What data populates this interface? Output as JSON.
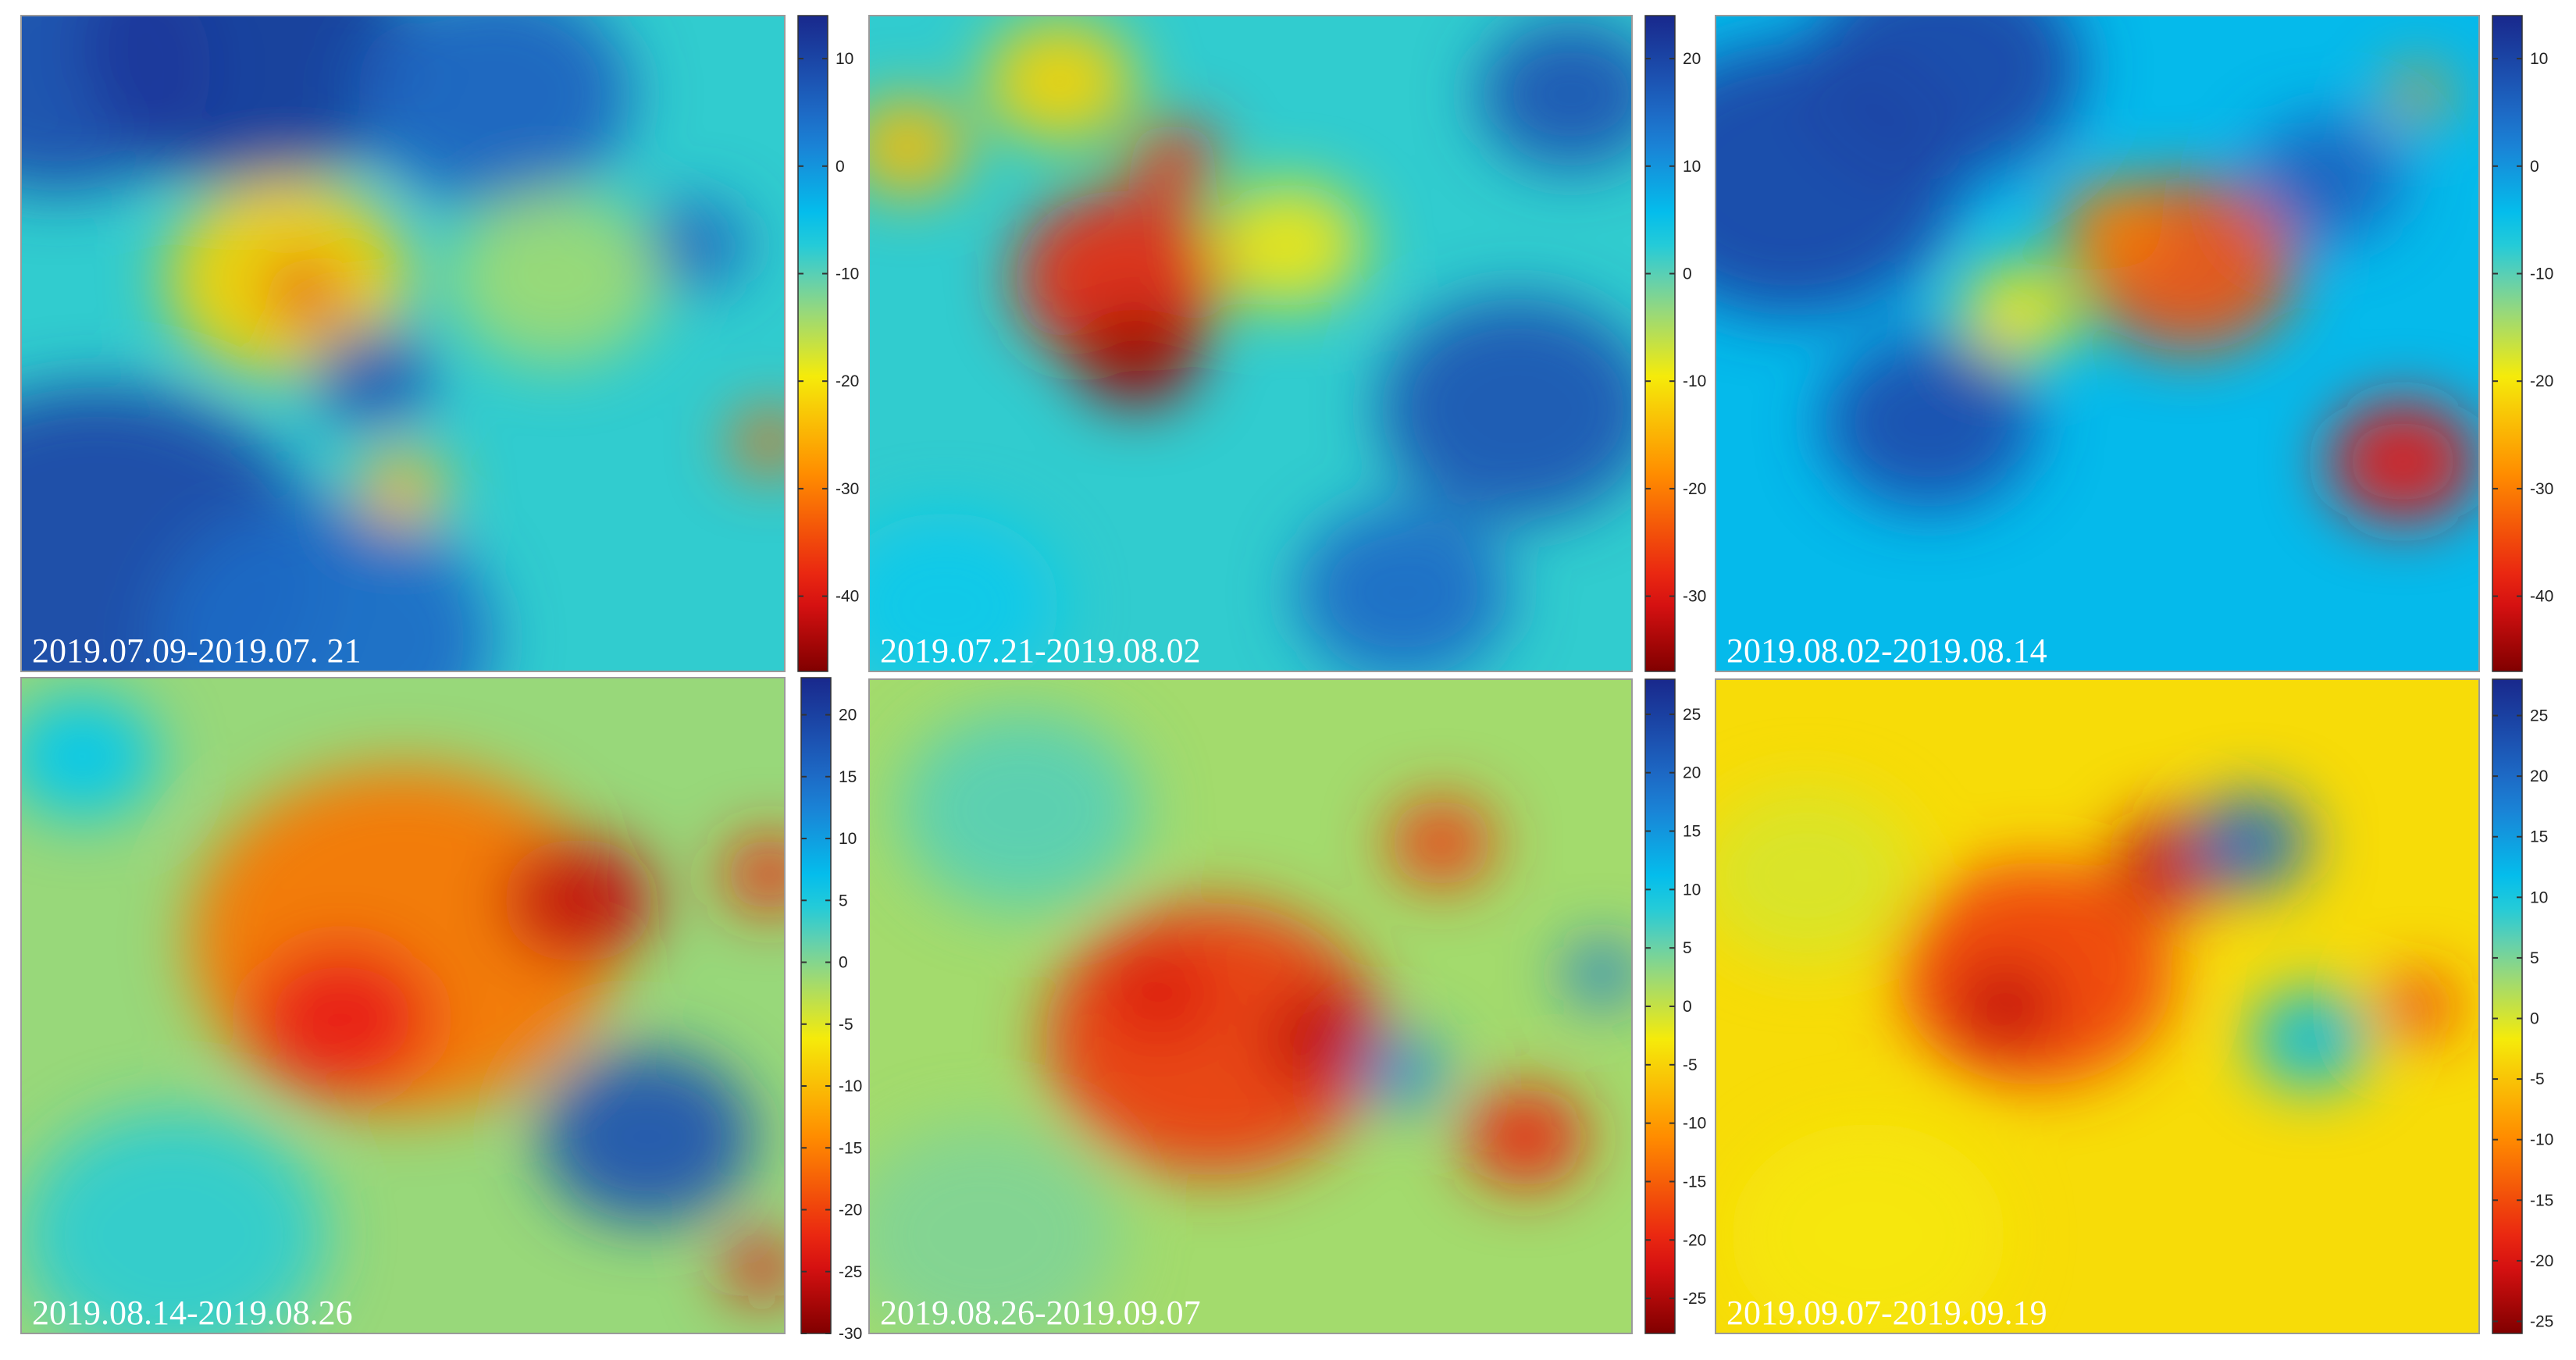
{
  "chart_data": [
    {
      "type": "heatmap",
      "title": "2019.07.09-2019.07. 21",
      "colorbar": {
        "range": [
          -47,
          14
        ],
        "ticks": [
          10,
          0,
          -10,
          -20,
          -30,
          -40
        ]
      },
      "colormap": "jet",
      "background_value": -8,
      "features": [
        {
          "x": 0.05,
          "y": 0.08,
          "r": 0.2,
          "v": 9
        },
        {
          "x": 0.3,
          "y": 0.05,
          "r": 0.22,
          "v": 12
        },
        {
          "x": 0.62,
          "y": 0.12,
          "r": 0.18,
          "v": 6
        },
        {
          "x": 0.1,
          "y": 0.85,
          "r": 0.3,
          "v": 10
        },
        {
          "x": 0.4,
          "y": 0.95,
          "r": 0.22,
          "v": 5
        },
        {
          "x": 0.35,
          "y": 0.4,
          "r": 0.16,
          "v": -22
        },
        {
          "x": 0.37,
          "y": 0.42,
          "r": 0.05,
          "v": -38
        },
        {
          "x": 0.46,
          "y": 0.55,
          "r": 0.08,
          "v": 8
        },
        {
          "x": 0.88,
          "y": 0.35,
          "r": 0.07,
          "v": 6
        },
        {
          "x": 0.98,
          "y": 0.65,
          "r": 0.05,
          "v": -32
        },
        {
          "x": 0.7,
          "y": 0.4,
          "r": 0.14,
          "v": -14
        },
        {
          "x": 0.5,
          "y": 0.72,
          "r": 0.06,
          "v": -24
        }
      ]
    },
    {
      "type": "heatmap",
      "title": "2019.07.21-2019.08.02",
      "colorbar": {
        "range": [
          -37,
          24
        ],
        "ticks": [
          20,
          10,
          0,
          -10,
          -20,
          -30
        ]
      },
      "colormap": "jet",
      "background_value": 2,
      "features": [
        {
          "x": 0.33,
          "y": 0.4,
          "r": 0.14,
          "v": -28
        },
        {
          "x": 0.35,
          "y": 0.52,
          "r": 0.08,
          "v": -35
        },
        {
          "x": 0.4,
          "y": 0.22,
          "r": 0.06,
          "v": -26
        },
        {
          "x": 0.25,
          "y": 0.1,
          "r": 0.1,
          "v": -12
        },
        {
          "x": 0.85,
          "y": 0.6,
          "r": 0.18,
          "v": 18
        },
        {
          "x": 0.92,
          "y": 0.12,
          "r": 0.12,
          "v": 18
        },
        {
          "x": 0.7,
          "y": 0.88,
          "r": 0.14,
          "v": 15
        },
        {
          "x": 0.55,
          "y": 0.35,
          "r": 0.1,
          "v": -10
        },
        {
          "x": 0.1,
          "y": 0.9,
          "r": 0.15,
          "v": 4
        },
        {
          "x": 0.05,
          "y": 0.2,
          "r": 0.08,
          "v": -14
        }
      ]
    },
    {
      "type": "heatmap",
      "title": "2019.08.02-2019.08.14",
      "colorbar": {
        "range": [
          -47,
          14
        ],
        "ticks": [
          10,
          0,
          -10,
          -20,
          -30,
          -40
        ]
      },
      "colormap": "jet",
      "background_value": -4,
      "features": [
        {
          "x": 0.1,
          "y": 0.25,
          "r": 0.22,
          "v": 10
        },
        {
          "x": 0.3,
          "y": 0.08,
          "r": 0.18,
          "v": 10
        },
        {
          "x": 0.62,
          "y": 0.38,
          "r": 0.14,
          "v": -34
        },
        {
          "x": 0.52,
          "y": 0.32,
          "r": 0.07,
          "v": -30
        },
        {
          "x": 0.9,
          "y": 0.68,
          "r": 0.1,
          "v": -40
        },
        {
          "x": 0.92,
          "y": 0.12,
          "r": 0.04,
          "v": -28
        },
        {
          "x": 0.28,
          "y": 0.62,
          "r": 0.14,
          "v": 9
        },
        {
          "x": 0.4,
          "y": 0.45,
          "r": 0.08,
          "v": -20
        },
        {
          "x": 0.8,
          "y": 0.25,
          "r": 0.1,
          "v": 6
        }
      ]
    },
    {
      "type": "heatmap",
      "title": "2019.08.14-2019.08.26",
      "colorbar": {
        "range": [
          -30,
          23
        ],
        "ticks": [
          20,
          15,
          10,
          5,
          0,
          -5,
          -10,
          -15,
          -20,
          -25,
          -30
        ]
      },
      "colormap": "jet",
      "background_value": -1,
      "features": [
        {
          "x": 0.5,
          "y": 0.4,
          "r": 0.28,
          "v": -16
        },
        {
          "x": 0.42,
          "y": 0.52,
          "r": 0.12,
          "v": -23
        },
        {
          "x": 0.73,
          "y": 0.34,
          "r": 0.1,
          "v": -26
        },
        {
          "x": 0.82,
          "y": 0.7,
          "r": 0.14,
          "v": 18
        },
        {
          "x": 0.08,
          "y": 0.12,
          "r": 0.1,
          "v": 6
        },
        {
          "x": 0.2,
          "y": 0.85,
          "r": 0.2,
          "v": 4
        },
        {
          "x": 0.97,
          "y": 0.9,
          "r": 0.05,
          "v": -24
        },
        {
          "x": 0.98,
          "y": 0.3,
          "r": 0.06,
          "v": -22
        }
      ]
    },
    {
      "type": "heatmap",
      "title": "2019.08.26-2019.09.07",
      "colorbar": {
        "range": [
          -28,
          28
        ],
        "ticks": [
          25,
          20,
          15,
          10,
          5,
          0,
          -5,
          -10,
          -15,
          -20,
          -25
        ]
      },
      "colormap": "jet",
      "background_value": 2,
      "features": [
        {
          "x": 0.45,
          "y": 0.55,
          "r": 0.22,
          "v": -18
        },
        {
          "x": 0.6,
          "y": 0.55,
          "r": 0.08,
          "v": -24
        },
        {
          "x": 0.38,
          "y": 0.48,
          "r": 0.07,
          "v": -22
        },
        {
          "x": 0.75,
          "y": 0.25,
          "r": 0.07,
          "v": -18
        },
        {
          "x": 0.86,
          "y": 0.7,
          "r": 0.08,
          "v": -20
        },
        {
          "x": 0.7,
          "y": 0.6,
          "r": 0.06,
          "v": 16
        },
        {
          "x": 0.96,
          "y": 0.45,
          "r": 0.05,
          "v": 18
        },
        {
          "x": 0.2,
          "y": 0.2,
          "r": 0.16,
          "v": 6
        },
        {
          "x": 0.15,
          "y": 0.85,
          "r": 0.18,
          "v": 4
        }
      ]
    },
    {
      "type": "heatmap",
      "title": "2019.09.07-2019.09.19",
      "colorbar": {
        "range": [
          -26,
          28
        ],
        "ticks": [
          25,
          20,
          15,
          10,
          5,
          0,
          -5,
          -10,
          -15,
          -20,
          -25
        ]
      },
      "colormap": "jet",
      "background_value": -3,
      "features": [
        {
          "x": 0.42,
          "y": 0.45,
          "r": 0.18,
          "v": -16
        },
        {
          "x": 0.38,
          "y": 0.5,
          "r": 0.07,
          "v": -22
        },
        {
          "x": 0.6,
          "y": 0.28,
          "r": 0.08,
          "v": -22
        },
        {
          "x": 0.7,
          "y": 0.25,
          "r": 0.08,
          "v": 20
        },
        {
          "x": 0.78,
          "y": 0.55,
          "r": 0.08,
          "v": 12
        },
        {
          "x": 0.92,
          "y": 0.5,
          "r": 0.05,
          "v": -18
        },
        {
          "x": 0.12,
          "y": 0.3,
          "r": 0.14,
          "v": 0
        },
        {
          "x": 0.2,
          "y": 0.85,
          "r": 0.18,
          "v": -2
        }
      ]
    }
  ],
  "colors": {
    "frame": "#9a9a9a",
    "title_text": "#ffffff",
    "tick_text": "#222222"
  }
}
